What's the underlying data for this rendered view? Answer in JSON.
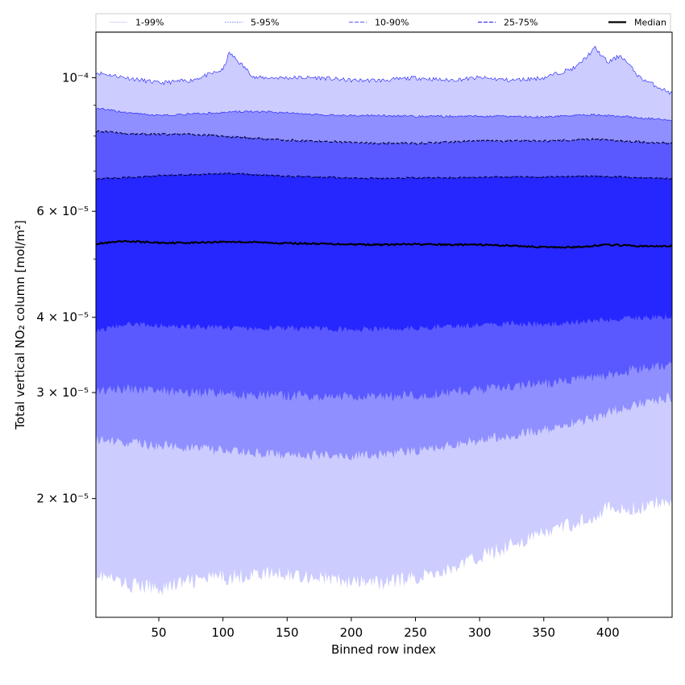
{
  "chart_data": {
    "type": "area",
    "xlabel": "Binned row index",
    "ylabel": "Total vertical NO₂ column [mol/m²]",
    "xlim": [
      1,
      450
    ],
    "ylim": [
      1.27e-05,
      0.000119
    ],
    "yscale": "log",
    "grid": false,
    "legend_placement": "top",
    "x_ticks": [
      {
        "value": 50,
        "label": "50"
      },
      {
        "value": 100,
        "label": "100"
      },
      {
        "value": 150,
        "label": "150"
      },
      {
        "value": 200,
        "label": "200"
      },
      {
        "value": 250,
        "label": "250"
      },
      {
        "value": 300,
        "label": "300"
      },
      {
        "value": 350,
        "label": "350"
      },
      {
        "value": 400,
        "label": "400"
      }
    ],
    "y_ticks": [
      {
        "value": 2e-05,
        "label": "2 × 10⁻⁵"
      },
      {
        "value": 3e-05,
        "label": "3 × 10⁻⁵"
      },
      {
        "value": 4e-05,
        "label": "4 × 10⁻⁵"
      },
      {
        "value": 6e-05,
        "label": "6 × 10⁻⁵"
      },
      {
        "value": 0.0001,
        "label": "10⁻⁴"
      }
    ],
    "y_minor_ticks": [
      5e-05,
      7e-05,
      8e-05,
      9e-05
    ],
    "x": [
      1,
      25,
      50,
      75,
      100,
      105,
      125,
      150,
      175,
      200,
      225,
      250,
      275,
      300,
      325,
      350,
      375,
      390,
      400,
      410,
      425,
      450
    ],
    "bands": [
      {
        "name": "1-99%",
        "fill": "#ccccff",
        "line_color": "#1a1aff",
        "line_style": "thin",
        "lower": [
          1.5e-05,
          1.44e-05,
          1.42e-05,
          1.46e-05,
          1.48e-05,
          1.48e-05,
          1.5e-05,
          1.5e-05,
          1.48e-05,
          1.45e-05,
          1.45e-05,
          1.48e-05,
          1.52e-05,
          1.6e-05,
          1.68e-05,
          1.75e-05,
          1.82e-05,
          1.88e-05,
          1.93e-05,
          1.91e-05,
          1.93e-05,
          2e-05
        ],
        "upper": [
          0.000102,
          0.0001,
          9.8e-05,
          9.9e-05,
          0.000103,
          0.00011,
          0.0001,
          0.0001,
          0.0001,
          9.9e-05,
          9.9e-05,
          0.0001,
          9.9e-05,
          0.0001,
          9.9e-05,
          0.0001,
          0.000104,
          0.000112,
          0.000106,
          0.000109,
          0.0001,
          9.4e-05
        ]
      },
      {
        "name": "5-95%",
        "fill": "#8f8fff",
        "line_color": "#1a1aff",
        "line_style": "thin",
        "lower": [
          2.5e-05,
          2.48e-05,
          2.45e-05,
          2.43e-05,
          2.4e-05,
          2.4e-05,
          2.38e-05,
          2.36e-05,
          2.36e-05,
          2.36e-05,
          2.37e-05,
          2.4e-05,
          2.45e-05,
          2.5e-05,
          2.55e-05,
          2.6e-05,
          2.68e-05,
          2.72e-05,
          2.78e-05,
          2.82e-05,
          2.88e-05,
          2.95e-05
        ],
        "upper": [
          8.9e-05,
          8.75e-05,
          8.65e-05,
          8.7e-05,
          8.75e-05,
          8.78e-05,
          8.78e-05,
          8.75e-05,
          8.68e-05,
          8.65e-05,
          8.65e-05,
          8.63e-05,
          8.63e-05,
          8.63e-05,
          8.63e-05,
          8.6e-05,
          8.66e-05,
          8.68e-05,
          8.65e-05,
          8.62e-05,
          8.58e-05,
          8.5e-05
        ]
      },
      {
        "name": "10-90%",
        "fill": "#5959ff",
        "line_color": "#000033",
        "line_style": "dashed",
        "lower": [
          3e-05,
          3.05e-05,
          3.03e-05,
          3e-05,
          3e-05,
          2.98e-05,
          2.97e-05,
          2.97e-05,
          2.96e-05,
          2.95e-05,
          2.96e-05,
          2.97e-05,
          3e-05,
          3.03e-05,
          3.07e-05,
          3.1e-05,
          3.15e-05,
          3.18e-05,
          3.2e-05,
          3.25e-05,
          3.3e-05,
          3.33e-05
        ],
        "upper": [
          8.15e-05,
          8.08e-05,
          8.05e-05,
          8.05e-05,
          8e-05,
          7.98e-05,
          7.93e-05,
          7.87e-05,
          7.85e-05,
          7.8e-05,
          7.78e-05,
          7.78e-05,
          7.82e-05,
          7.85e-05,
          7.85e-05,
          7.85e-05,
          7.88e-05,
          7.9e-05,
          7.88e-05,
          7.86e-05,
          7.82e-05,
          7.78e-05
        ]
      },
      {
        "name": "25-75%",
        "fill": "#2626ff",
        "line_color": "#000033",
        "line_style": "dashed",
        "lower": [
          3.8e-05,
          3.9e-05,
          3.88e-05,
          3.86e-05,
          3.85e-05,
          3.84e-05,
          3.84e-05,
          3.84e-05,
          3.83e-05,
          3.82e-05,
          3.83e-05,
          3.84e-05,
          3.86e-05,
          3.88e-05,
          3.9e-05,
          3.9e-05,
          3.93e-05,
          3.95e-05,
          3.97e-05,
          3.98e-05,
          4e-05,
          4.01e-05
        ],
        "upper": [
          6.8e-05,
          6.82e-05,
          6.88e-05,
          6.9e-05,
          6.93e-05,
          6.93e-05,
          6.9e-05,
          6.86e-05,
          6.84e-05,
          6.82e-05,
          6.8e-05,
          6.82e-05,
          6.82e-05,
          6.84e-05,
          6.84e-05,
          6.84e-05,
          6.86e-05,
          6.86e-05,
          6.85e-05,
          6.84e-05,
          6.82e-05,
          6.8e-05
        ]
      }
    ],
    "median": {
      "name": "Median",
      "color": "#000000",
      "values": [
        5.3e-05,
        5.35e-05,
        5.32e-05,
        5.32e-05,
        5.34e-05,
        5.34e-05,
        5.33e-05,
        5.31e-05,
        5.3e-05,
        5.29e-05,
        5.28e-05,
        5.29e-05,
        5.28e-05,
        5.28e-05,
        5.26e-05,
        5.23e-05,
        5.23e-05,
        5.26e-05,
        5.28e-05,
        5.27e-05,
        5.25e-05,
        5.25e-05
      ]
    },
    "legend": [
      {
        "label": "1-99%",
        "color": "#c8c8ff",
        "style": "thin"
      },
      {
        "label": "5-95%",
        "color": "#8080ff",
        "style": "dotted"
      },
      {
        "label": "10-90%",
        "color": "#7070ff",
        "style": "dashed"
      },
      {
        "label": "25-75%",
        "color": "#3535ff",
        "style": "dashed"
      },
      {
        "label": "Median",
        "color": "#000000",
        "style": "solid"
      }
    ]
  }
}
